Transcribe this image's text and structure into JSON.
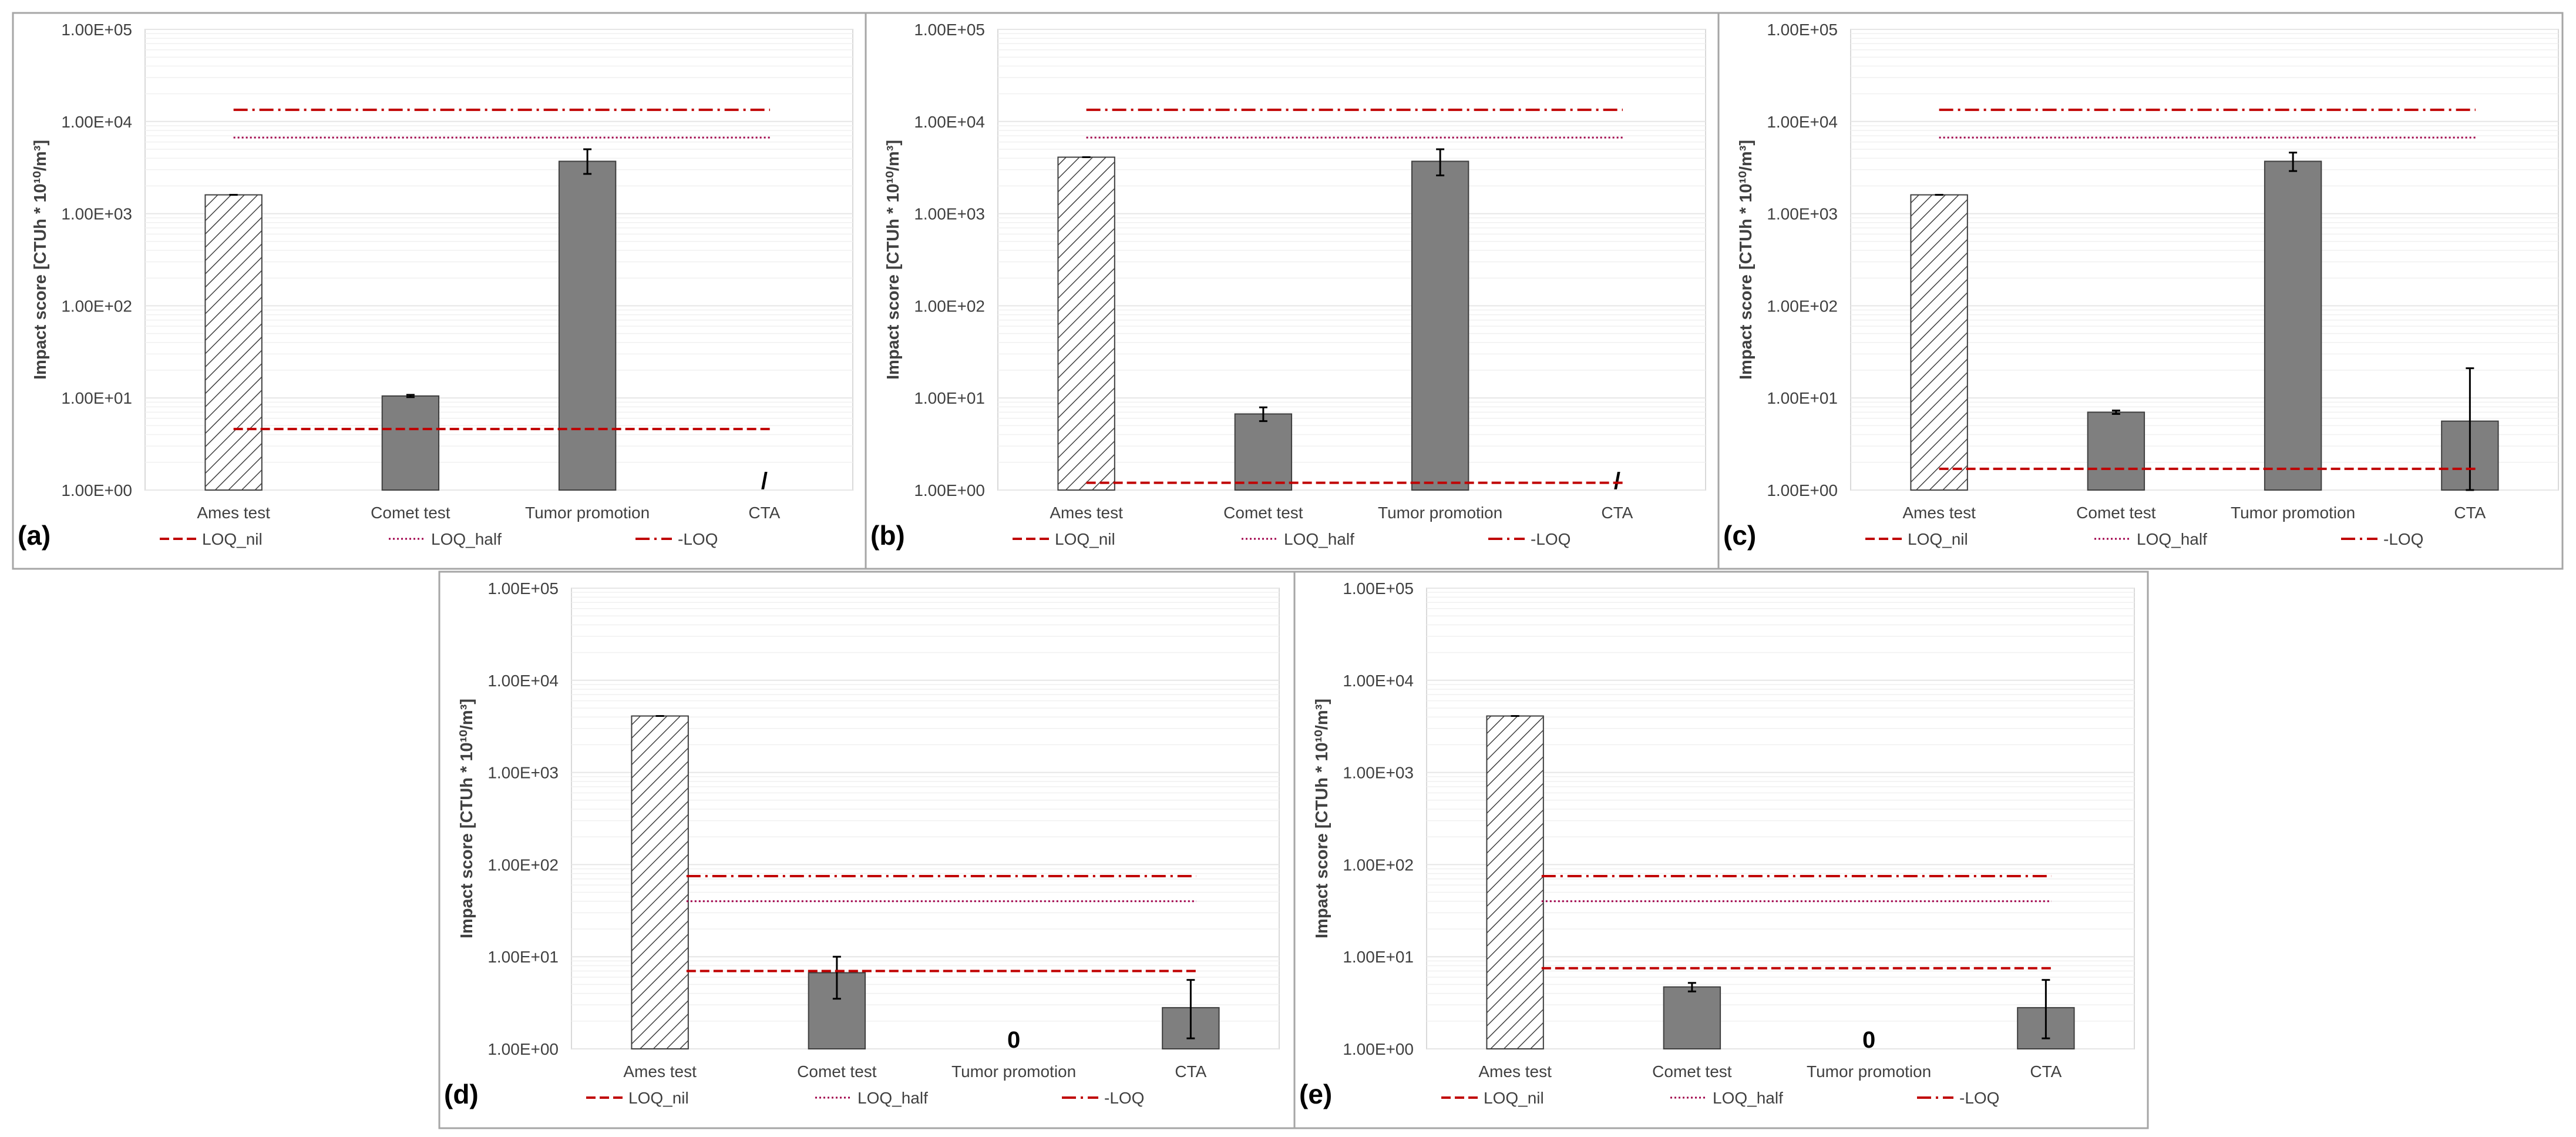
{
  "colors": {
    "bar_solid": "#7f7f7f",
    "bar_edge": "#3f3f3f",
    "loq": "#c00000",
    "loq_half": "#a0004a",
    "grid": "#e6e6e6",
    "frame": "#a6a6a6",
    "text": "#404040"
  },
  "chart_data": [
    {
      "panel_label": "(a)",
      "type": "bar",
      "scale": "log",
      "ylabel": "Impact score [CTUh * 10¹⁰/m³]",
      "ylim": [
        1,
        100000
      ],
      "ytick_labels": [
        "1.00E+00",
        "1.00E+01",
        "1.00E+02",
        "1.00E+03",
        "1.00E+04",
        "1.00E+05"
      ],
      "categories": [
        "Ames test",
        "Comet test",
        "Tumor promotion",
        "CTA"
      ],
      "bars": [
        {
          "category": "Ames test",
          "value": 1600,
          "pattern": "hatch",
          "err": [
            1600,
            1600
          ],
          "marker": ""
        },
        {
          "category": "Comet test",
          "value": 10.5,
          "pattern": "solid",
          "err": [
            10.2,
            10.8
          ],
          "marker": ""
        },
        {
          "category": "Tumor promotion",
          "value": 3700,
          "pattern": "solid",
          "err": [
            2700,
            5000
          ],
          "marker": ""
        },
        {
          "category": "CTA",
          "value": null,
          "pattern": "none",
          "err": null,
          "marker": "/"
        }
      ],
      "lines": [
        {
          "name": "LOQ_nil",
          "value": 4.6,
          "from": 0,
          "to": 3
        },
        {
          "name": "LOQ_half",
          "value": 6700,
          "from": 0,
          "to": 3
        },
        {
          "name": "LOQ",
          "value": 13400,
          "from": 0,
          "to": 3
        }
      ],
      "legend": [
        "LOQ_nil",
        "LOQ_half",
        "LOQ"
      ]
    },
    {
      "panel_label": "(b)",
      "type": "bar",
      "scale": "log",
      "ylabel": "Impact score [CTUh * 10¹⁰/m³]",
      "ylim": [
        1,
        100000
      ],
      "ytick_labels": [
        "1.00E+00",
        "1.00E+01",
        "1.00E+02",
        "1.00E+03",
        "1.00E+04",
        "1.00E+05"
      ],
      "categories": [
        "Ames test",
        "Comet test",
        "Tumor promotion",
        "CTA"
      ],
      "bars": [
        {
          "category": "Ames test",
          "value": 4100,
          "pattern": "hatch",
          "err": [
            4100,
            4100
          ],
          "marker": ""
        },
        {
          "category": "Comet test",
          "value": 6.7,
          "pattern": "solid",
          "err": [
            5.6,
            7.9
          ],
          "marker": ""
        },
        {
          "category": "Tumor promotion",
          "value": 3700,
          "pattern": "solid",
          "err": [
            2600,
            5000
          ],
          "marker": ""
        },
        {
          "category": "CTA",
          "value": null,
          "pattern": "none",
          "err": null,
          "marker": "/"
        }
      ],
      "lines": [
        {
          "name": "LOQ_nil",
          "value": 1.2,
          "from": 0,
          "to": 3
        },
        {
          "name": "LOQ_half",
          "value": 6700,
          "from": 0,
          "to": 3
        },
        {
          "name": "LOQ",
          "value": 13400,
          "from": 0,
          "to": 3
        }
      ],
      "legend": [
        "LOQ_nil",
        "LOQ_half",
        "LOQ"
      ]
    },
    {
      "panel_label": "(c)",
      "type": "bar",
      "scale": "log",
      "ylabel": "Impact score [CTUh * 10¹⁰/m³]",
      "ylim": [
        1,
        100000
      ],
      "ytick_labels": [
        "1.00E+00",
        "1.00E+01",
        "1.00E+02",
        "1.00E+03",
        "1.00E+04",
        "1.00E+05"
      ],
      "categories": [
        "Ames test",
        "Comet test",
        "Tumor promotion",
        "CTA"
      ],
      "bars": [
        {
          "category": "Ames test",
          "value": 1600,
          "pattern": "hatch",
          "err": [
            1600,
            1600
          ],
          "marker": ""
        },
        {
          "category": "Comet test",
          "value": 7.0,
          "pattern": "solid",
          "err": [
            6.7,
            7.3
          ],
          "marker": ""
        },
        {
          "category": "Tumor promotion",
          "value": 3700,
          "pattern": "solid",
          "err": [
            2900,
            4600
          ],
          "marker": ""
        },
        {
          "category": "CTA",
          "value": 5.6,
          "pattern": "solid",
          "err": [
            1,
            21
          ],
          "marker": ""
        }
      ],
      "lines": [
        {
          "name": "LOQ_nil",
          "value": 1.7,
          "from": 0,
          "to": 3
        },
        {
          "name": "LOQ_half",
          "value": 6700,
          "from": 0,
          "to": 3
        },
        {
          "name": "LOQ",
          "value": 13400,
          "from": 0,
          "to": 3
        }
      ],
      "legend": [
        "LOQ_nil",
        "LOQ_half",
        "LOQ"
      ]
    },
    {
      "panel_label": "(d)",
      "type": "bar",
      "scale": "log",
      "ylabel": "Impact score [CTUh * 10¹⁰/m³]",
      "ylim": [
        1,
        100000
      ],
      "ytick_labels": [
        "1.00E+00",
        "1.00E+01",
        "1.00E+02",
        "1.00E+03",
        "1.00E+04",
        "1.00E+05"
      ],
      "categories": [
        "Ames test",
        "Comet test",
        "Tumor promotion",
        "CTA"
      ],
      "bars": [
        {
          "category": "Ames test",
          "value": 4100,
          "pattern": "hatch",
          "err": [
            4100,
            4100
          ],
          "marker": ""
        },
        {
          "category": "Comet test",
          "value": 6.7,
          "pattern": "solid",
          "err": [
            3.5,
            10
          ],
          "marker": ""
        },
        {
          "category": "Tumor promotion",
          "value": null,
          "pattern": "none",
          "err": null,
          "marker": "0"
        },
        {
          "category": "CTA",
          "value": 2.8,
          "pattern": "solid",
          "err": [
            1.3,
            5.6
          ],
          "marker": ""
        }
      ],
      "lines": [
        {
          "name": "LOQ_nil",
          "value": 7.0,
          "from": 0.15,
          "to": 3
        },
        {
          "name": "LOQ_half",
          "value": 40,
          "from": 0.15,
          "to": 3
        },
        {
          "name": "LOQ",
          "value": 75,
          "from": 0.15,
          "to": 3
        }
      ],
      "legend": [
        "LOQ_nil",
        "LOQ_half",
        "LOQ"
      ]
    },
    {
      "panel_label": "(e)",
      "type": "bar",
      "scale": "log",
      "ylabel": "Impact score [CTUh * 10¹⁰/m³]",
      "ylim": [
        1,
        100000
      ],
      "ytick_labels": [
        "1.00E+00",
        "1.00E+01",
        "1.00E+02",
        "1.00E+03",
        "1.00E+04",
        "1.00E+05"
      ],
      "categories": [
        "Ames test",
        "Comet test",
        "Tumor promotion",
        "CTA"
      ],
      "bars": [
        {
          "category": "Ames test",
          "value": 4100,
          "pattern": "hatch",
          "err": [
            4100,
            4100
          ],
          "marker": ""
        },
        {
          "category": "Comet test",
          "value": 4.7,
          "pattern": "solid",
          "err": [
            4.2,
            5.2
          ],
          "marker": ""
        },
        {
          "category": "Tumor promotion",
          "value": null,
          "pattern": "none",
          "err": null,
          "marker": "0"
        },
        {
          "category": "CTA",
          "value": 2.8,
          "pattern": "solid",
          "err": [
            1.3,
            5.6
          ],
          "marker": ""
        }
      ],
      "lines": [
        {
          "name": "LOQ_nil",
          "value": 7.5,
          "from": 0.15,
          "to": 3
        },
        {
          "name": "LOQ_half",
          "value": 40,
          "from": 0.15,
          "to": 3
        },
        {
          "name": "LOQ",
          "value": 75,
          "from": 0.15,
          "to": 3
        }
      ],
      "legend": [
        "LOQ_nil",
        "LOQ_half",
        "LOQ"
      ]
    }
  ]
}
